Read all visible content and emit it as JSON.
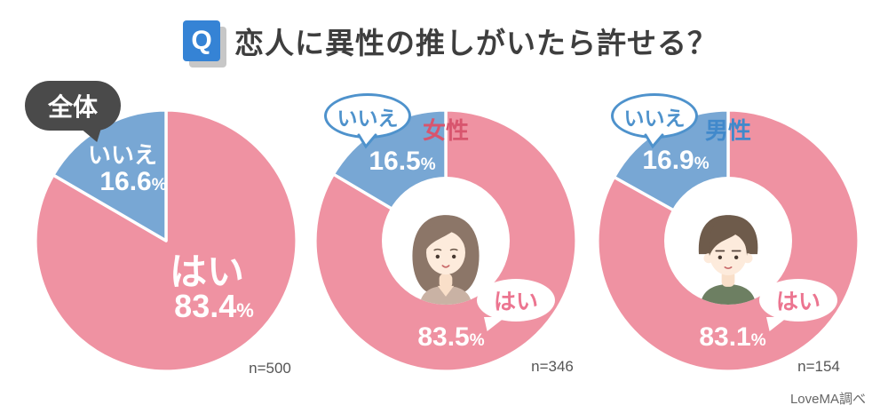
{
  "header": {
    "q_badge": "Q",
    "title": "恋人に異性の推しがいたら許せる？"
  },
  "footer": {
    "source": "LoveMA調べ"
  },
  "unit": "%",
  "colors": {
    "yes_pink": "#EF92A2",
    "no_blue": "#78A7D4",
    "badge_blue": "#3583D5",
    "female_accent": "#D8556E",
    "male_accent": "#4189CB",
    "bubble_dark": "#4A4A4A",
    "bubble_no_border": "#4E92CC",
    "bubble_yes_text": "#EC7590"
  },
  "chart_data": [
    {
      "type": "pie",
      "donut": false,
      "group_label": "全体",
      "n_label": "n=500",
      "slices": [
        {
          "label": "はい",
          "value": 83.4,
          "display": "83.4",
          "color": "#EF92A2"
        },
        {
          "label": "いいえ",
          "value": 16.6,
          "display": "16.6",
          "color": "#78A7D4"
        }
      ]
    },
    {
      "type": "pie",
      "donut": true,
      "center_label": "女性",
      "n_label": "n=346",
      "slices": [
        {
          "label": "はい",
          "value": 83.5,
          "display": "83.5",
          "color": "#EF92A2"
        },
        {
          "label": "いいえ",
          "value": 16.5,
          "display": "16.5",
          "color": "#78A7D4"
        }
      ]
    },
    {
      "type": "pie",
      "donut": true,
      "center_label": "男性",
      "n_label": "n=154",
      "slices": [
        {
          "label": "はい",
          "value": 83.1,
          "display": "83.1",
          "color": "#EF92A2"
        },
        {
          "label": "いいえ",
          "value": 16.9,
          "display": "16.9",
          "color": "#78A7D4"
        }
      ]
    }
  ]
}
